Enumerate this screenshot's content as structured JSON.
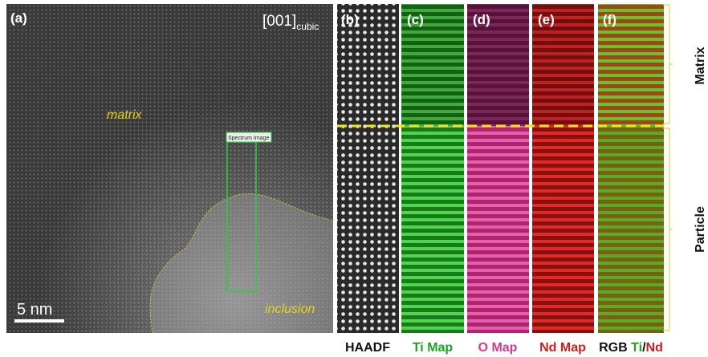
{
  "panel_a": {
    "label": "(a)",
    "zone_axis": "[001]",
    "zone_axis_subscript": "cubic",
    "region_matrix": "matrix",
    "region_inclusion": "inclusion",
    "box_label": "Spectrum Image",
    "scale_bar": "5 nm"
  },
  "panels": [
    {
      "label": "(b)",
      "caption": "HAADF"
    },
    {
      "label": "(c)",
      "caption": "Ti Map"
    },
    {
      "label": "(d)",
      "caption": "O Map"
    },
    {
      "label": "(e)",
      "caption": "Nd Map"
    },
    {
      "label": "(f)"
    }
  ],
  "rgb_caption": {
    "prefix": "RGB",
    "ti": "Ti",
    "slash": "/",
    "nd": "Nd"
  },
  "side_labels": {
    "matrix": "Matrix",
    "particle": "Particle"
  }
}
